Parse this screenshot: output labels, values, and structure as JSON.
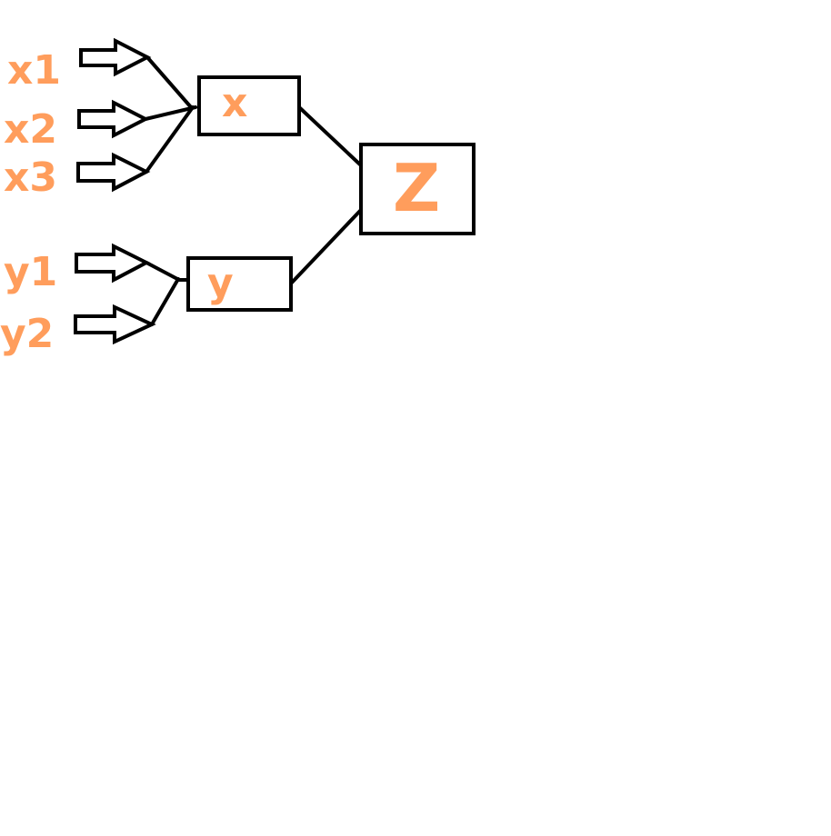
{
  "inputs_x": [
    "x1",
    "x2",
    "x3"
  ],
  "inputs_y": [
    "y1",
    "y2"
  ],
  "nodes": {
    "x": "x",
    "y": "y",
    "z": "Z"
  },
  "colors": {
    "label": "#ff9d5c",
    "stroke": "#000000",
    "background": "#ffffff"
  }
}
